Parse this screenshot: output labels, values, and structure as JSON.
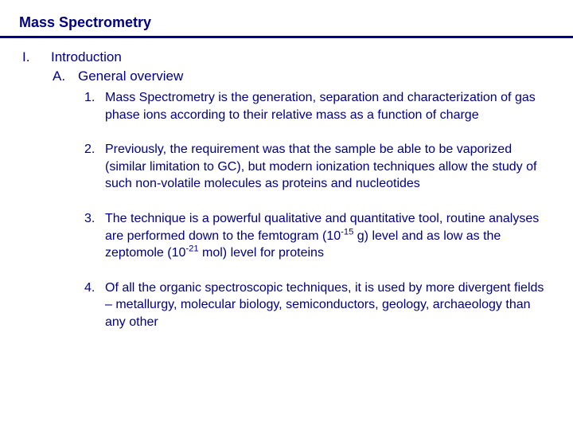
{
  "colors": {
    "text": "#000080",
    "divider": "#000080",
    "background": "#ffffff"
  },
  "typography": {
    "font_family": "Verdana, Geneva, sans-serif",
    "title_fontsize": 18,
    "level1_fontsize": 17,
    "level2_fontsize": 17,
    "level3_fontsize": 16
  },
  "title": "Mass Spectrometry",
  "outline": {
    "level1_marker": "I.",
    "level1_label": "Introduction",
    "level2_marker": "A.",
    "level2_label": "General overview",
    "items": [
      {
        "marker": "1.",
        "text": "Mass Spectrometry is the generation, separation and characterization of gas phase ions according to their relative mass as a function of charge"
      },
      {
        "marker": "2.",
        "text": "Previously, the requirement was that the sample be able to be vaporized (similar limitation to GC), but modern ionization techniques allow the study of such non-volatile molecules as proteins and nucleotides"
      },
      {
        "marker": "3.",
        "text_parts": [
          "The technique is a powerful qualitative and quantitative tool, routine analyses are performed down to the femtogram (10",
          "-15",
          " g) level and as low as the zeptomole (10",
          "-21",
          " mol) level for proteins"
        ]
      },
      {
        "marker": "4.",
        "text": "Of all the organic spectroscopic techniques, it is used by more divergent fields – metallurgy, molecular biology, semiconductors, geology, archaeology than any other"
      }
    ]
  }
}
